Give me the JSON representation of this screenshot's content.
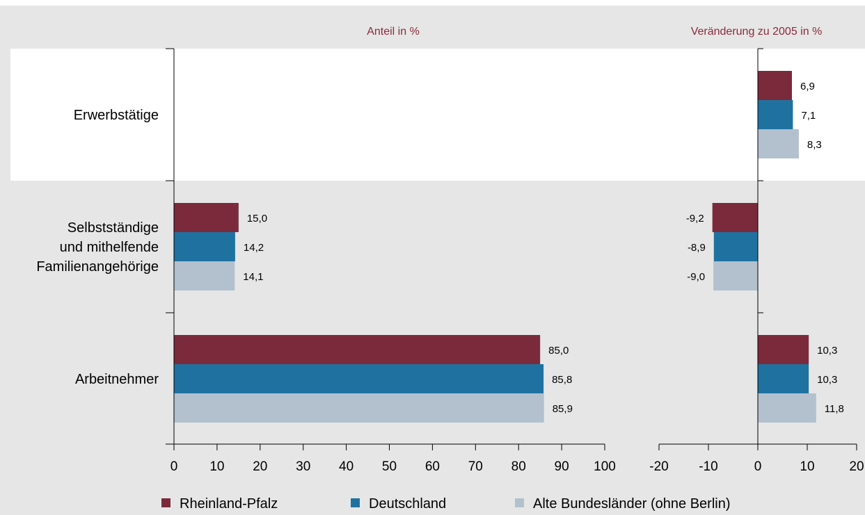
{
  "colors": {
    "rheinland_pfalz": "#7b2a3b",
    "deutschland": "#1f72a0",
    "alte_bundeslaender": "#b3c1ce",
    "title_color": "#8b2a3b",
    "background": "#e6e6e6"
  },
  "chart_data": [
    {
      "type": "bar",
      "orientation": "horizontal",
      "title": "Anteil in %",
      "categories": [
        "Erwerbstätige",
        "Selbstständige und mithelfende Familienangehörige",
        "Arbeitnehmer"
      ],
      "category_lines": [
        [
          "Erwerbstätige"
        ],
        [
          "Selbstständige",
          "und mithelfende",
          "Familienangehörige"
        ],
        [
          "Arbeitnehmer"
        ]
      ],
      "series": [
        {
          "name": "Rheinland-Pfalz",
          "values": [
            null,
            15.0,
            85.0
          ],
          "labels": [
            "",
            "15,0",
            "85,0"
          ]
        },
        {
          "name": "Deutschland",
          "values": [
            null,
            14.2,
            85.8
          ],
          "labels": [
            "",
            "14,2",
            "85,8"
          ]
        },
        {
          "name": "Alte Bundesländer (ohne Berlin)",
          "values": [
            null,
            14.1,
            85.9
          ],
          "labels": [
            "",
            "14,1",
            "85,9"
          ]
        }
      ],
      "xlim": [
        0,
        100
      ],
      "xticks": [
        0,
        10,
        20,
        30,
        40,
        50,
        60,
        70,
        80,
        90,
        100
      ],
      "xtick_labels": [
        "0",
        "10",
        "20",
        "30",
        "40",
        "50",
        "60",
        "70",
        "80",
        "90",
        "100"
      ],
      "grid": false
    },
    {
      "type": "bar",
      "orientation": "horizontal",
      "title": "Veränderung zu 2005 in %",
      "categories": [
        "Erwerbstätige",
        "Selbstständige und mithelfende Familienangehörige",
        "Arbeitnehmer"
      ],
      "series": [
        {
          "name": "Rheinland-Pfalz",
          "values": [
            6.9,
            -9.2,
            10.3
          ],
          "labels": [
            "6,9",
            "-9,2",
            "10,3"
          ]
        },
        {
          "name": "Deutschland",
          "values": [
            7.1,
            -8.9,
            10.3
          ],
          "labels": [
            "7,1",
            "-8,9",
            "10,3"
          ]
        },
        {
          "name": "Alte Bundesländer (ohne Berlin)",
          "values": [
            8.3,
            -9.0,
            11.8
          ],
          "labels": [
            "8,3",
            "-9,0",
            "11,8"
          ]
        }
      ],
      "xlim": [
        -20,
        20
      ],
      "xticks": [
        -20,
        -10,
        0,
        10,
        20
      ],
      "xtick_labels": [
        "-20",
        "-10",
        "0",
        "10",
        "20"
      ],
      "grid": false
    }
  ],
  "legend": {
    "placement": "bottom",
    "items": [
      {
        "label": "Rheinland-Pfalz",
        "color_key": "rheinland_pfalz"
      },
      {
        "label": "Deutschland",
        "color_key": "deutschland"
      },
      {
        "label": "Alte Bundesländer (ohne Berlin)",
        "color_key": "alte_bundeslaender"
      }
    ]
  }
}
